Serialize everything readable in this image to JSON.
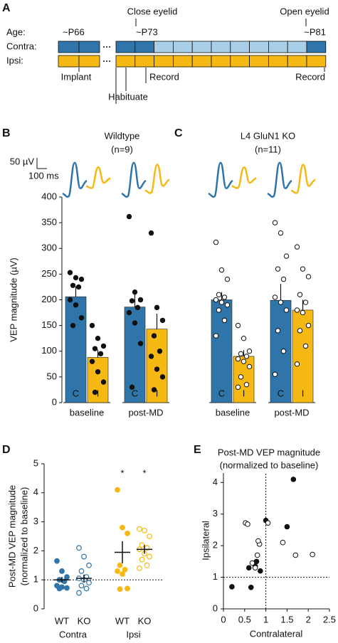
{
  "timeline": {
    "panel": "A",
    "row_labels": [
      "Age:",
      "Contra:",
      "Ipsi:"
    ],
    "ages": [
      "~P66",
      "~P73",
      "~P81"
    ],
    "events_above": [
      "Close eyelid",
      "Open eyelid"
    ],
    "events_below": [
      "Implant",
      "Habituate",
      "Record",
      "Record"
    ]
  },
  "chart_data": [
    {
      "panel": "B",
      "type": "bar",
      "title": "Wildtype",
      "subtitle": "(n=9)",
      "ylabel": "VEP magnitude (µV)",
      "scale_bar": {
        "y_label": "50 µV",
        "x_label": "100 ms"
      },
      "categories": [
        "baseline",
        "post-MD"
      ],
      "ylim": [
        0,
        400
      ],
      "yticks": [
        0,
        50,
        100,
        150,
        200,
        250,
        300,
        350,
        400
      ],
      "point_marker": "filled",
      "series": [
        {
          "name": "C",
          "color": "#2f75a9",
          "values": [
            206,
            186
          ],
          "errors": [
            20,
            28
          ],
          "points": [
            [
              253,
              243,
              240,
              228,
              225,
              200,
              190,
              165,
              150
            ],
            [
              362,
              215,
              200,
              198,
              185,
              175,
              155,
              115,
              30
            ]
          ]
        },
        {
          "name": "I",
          "color": "#f6b913",
          "values": [
            88,
            143
          ],
          "errors": [
            15,
            30
          ],
          "points": [
            [
              150,
              125,
              110,
              105,
              95,
              80,
              60,
              40,
              20
            ],
            [
              330,
              185,
              160,
              130,
              100,
              90,
              65,
              50,
              25
            ]
          ]
        }
      ]
    },
    {
      "panel": "C",
      "type": "bar",
      "title": "L4 GluN1 KO",
      "subtitle": "(n=11)",
      "categories": [
        "baseline",
        "post-MD"
      ],
      "ylim": [
        0,
        400
      ],
      "point_marker": "open",
      "series": [
        {
          "name": "C",
          "color": "#2f75a9",
          "values": [
            200,
            199
          ],
          "errors": [
            15,
            32
          ],
          "points": [
            [
              312,
              258,
              240,
              210,
              205,
              200,
              195,
              190,
              180,
              160,
              130
            ],
            [
              350,
              330,
              285,
              260,
              240,
              205,
              195,
              180,
              140,
              100,
              55
            ]
          ]
        },
        {
          "name": "I",
          "color": "#f6b913",
          "values": [
            90,
            180
          ],
          "errors": [
            12,
            20
          ],
          "points": [
            [
              150,
              125,
              100,
              95,
              90,
              85,
              80,
              70,
              50,
              35,
              30
            ],
            [
              303,
              260,
              245,
              210,
              195,
              180,
              175,
              150,
              140,
              110,
              75
            ]
          ]
        }
      ]
    },
    {
      "panel": "D",
      "type": "dot",
      "ylabel": [
        "Post-MD VEP magnitude",
        "(normalized to baseline)"
      ],
      "categories": [
        "WT",
        "KO",
        "WT",
        "KO"
      ],
      "groups": [
        "Contra",
        "Ipsi"
      ],
      "colors": [
        "#2f75a9",
        "#2f75a9",
        "#f6b913",
        "#f6b913"
      ],
      "markers": [
        "filled",
        "open",
        "filled",
        "open"
      ],
      "ylim": [
        0,
        5
      ],
      "yticks": [
        0,
        1,
        2,
        3,
        4,
        5
      ],
      "reference_line": 1,
      "points": [
        [
          1.65,
          1.3,
          1.1,
          1.0,
          0.95,
          0.8,
          0.75,
          0.72,
          0.7
        ],
        [
          2.1,
          1.8,
          1.5,
          1.3,
          1.1,
          1.05,
          1.0,
          0.9,
          0.8,
          0.7,
          0.55
        ],
        [
          4.1,
          2.8,
          2.6,
          1.5,
          1.35,
          1.3,
          1.2,
          0.7,
          0.68
        ],
        [
          2.75,
          2.7,
          2.5,
          2.2,
          2.1,
          2.05,
          1.9,
          1.8,
          1.7,
          1.5,
          1.4
        ]
      ],
      "means": [
        1.0,
        1.05,
        1.95,
        2.05
      ],
      "errors": [
        0.1,
        0.13,
        0.38,
        0.15
      ],
      "significance": [
        null,
        null,
        "*",
        "*"
      ]
    },
    {
      "panel": "E",
      "type": "scatter",
      "title": [
        "Post-MD VEP magnitude",
        "(normalized to baseline)"
      ],
      "xlabel": "Contralateral",
      "ylabel": "Ipsilateral",
      "xlim": [
        0,
        2.5
      ],
      "ylim": [
        0,
        4.3
      ],
      "xticks": [
        0,
        0.5,
        1,
        1.5,
        2,
        2.5
      ],
      "yticks": [
        0,
        1,
        2,
        3,
        4
      ],
      "reference_lines": {
        "x": 1,
        "y": 1
      },
      "series": [
        {
          "marker": "filled",
          "color": "#111111",
          "x": [
            0.2,
            0.65,
            0.6,
            0.75,
            0.87,
            1.0,
            1.5,
            1.65,
            0.78
          ],
          "y": [
            0.7,
            0.68,
            1.3,
            1.35,
            1.2,
            2.8,
            2.6,
            4.1,
            1.5
          ]
        },
        {
          "marker": "open",
          "color": "#111111",
          "x": [
            0.52,
            0.57,
            1.05,
            1.4,
            1.7,
            2.1,
            0.68,
            0.8,
            0.85,
            0.82,
            0.75
          ],
          "y": [
            2.72,
            2.68,
            2.72,
            2.1,
            1.7,
            1.72,
            1.45,
            1.7,
            2.05,
            2.15,
            1.3
          ]
        }
      ]
    }
  ]
}
